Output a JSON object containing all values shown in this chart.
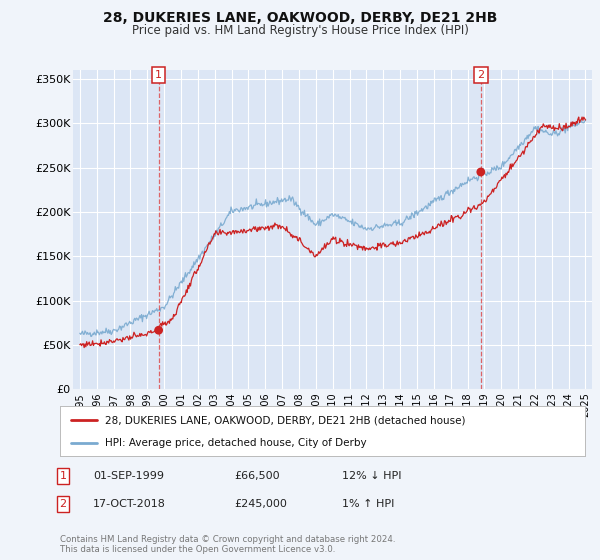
{
  "title": "28, DUKERIES LANE, OAKWOOD, DERBY, DE21 2HB",
  "subtitle": "Price paid vs. HM Land Registry's House Price Index (HPI)",
  "legend_entry1": "28, DUKERIES LANE, OAKWOOD, DERBY, DE21 2HB (detached house)",
  "legend_entry2": "HPI: Average price, detached house, City of Derby",
  "annotation1_label": "1",
  "annotation1_date": "01-SEP-1999",
  "annotation1_price": "£66,500",
  "annotation1_hpi": "12% ↓ HPI",
  "annotation2_label": "2",
  "annotation2_date": "17-OCT-2018",
  "annotation2_price": "£245,000",
  "annotation2_hpi": "1% ↑ HPI",
  "copyright_text": "Contains HM Land Registry data © Crown copyright and database right 2024.\nThis data is licensed under the Open Government Licence v3.0.",
  "bg_color": "#f0f4fa",
  "plot_bg_color": "#dce6f5",
  "grid_color": "#ffffff",
  "line1_color": "#cc2222",
  "line2_color": "#7aaad0",
  "marker_color": "#cc2222",
  "vline_color": "#dd4444",
  "annotation_box_color": "#cc2222",
  "ylim": [
    0,
    360000
  ],
  "yticks": [
    0,
    50000,
    100000,
    150000,
    200000,
    250000,
    300000,
    350000
  ],
  "ytick_labels": [
    "£0",
    "£50K",
    "£100K",
    "£150K",
    "£200K",
    "£250K",
    "£300K",
    "£350K"
  ],
  "xlim_start": 1994.6,
  "xlim_end": 2025.4,
  "sale1_year": 1999.67,
  "sale1_price": 66500,
  "sale2_year": 2018.79,
  "sale2_price": 245000
}
